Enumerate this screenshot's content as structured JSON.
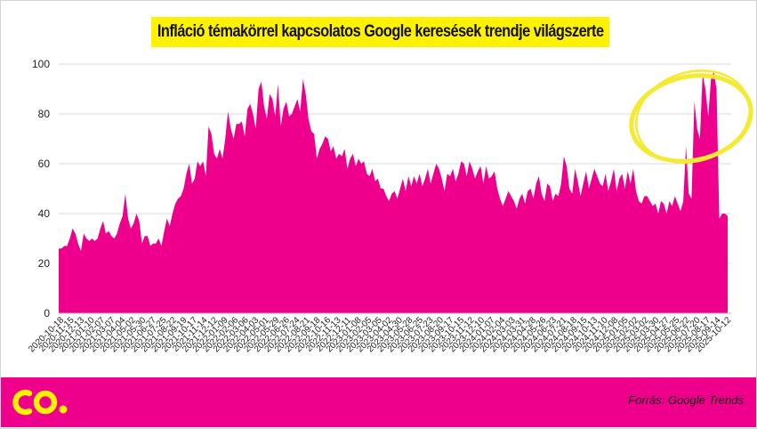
{
  "title": "Infláció témakörrel kapcsolatos Google keresések trendje világszerte",
  "source": "Forrás: Google Trends",
  "logo": "co.",
  "colors": {
    "area": "#ee008c",
    "title_bg": "#fff200",
    "highlight": "#f5ea33",
    "footer_bg": "#ee008c",
    "grid": "#d9d9d9"
  },
  "chart_data": {
    "type": "area",
    "title": "Infláció témakörrel kapcsolatos Google keresések trendje világszerte",
    "xlabel": "",
    "ylabel": "",
    "ylim": [
      0,
      100
    ],
    "yticks": [
      0,
      20,
      40,
      60,
      80,
      100
    ],
    "grid": true,
    "xtick_labels": [
      "2020-10-18",
      "2020-11-15",
      "2020-12-13",
      "2021-01-10",
      "2021-02-07",
      "2021-03-07",
      "2021-04-04",
      "2021-05-02",
      "2021-05-30",
      "2021-06-27",
      "2021-07-25",
      "2021-08-22",
      "2021-09-19",
      "2021-10-17",
      "2021-11-14",
      "2021-12-12",
      "2022-01-09",
      "2022-02-06",
      "2022-03-06",
      "2022-04-03",
      "2022-05-01",
      "2022-05-29",
      "2022-06-26",
      "2022-07-24",
      "2022-08-21",
      "2022-09-18",
      "2022-10-16",
      "2022-11-13",
      "2022-12-11",
      "2023-01-08",
      "2023-02-05",
      "2023-03-05",
      "2023-04-02",
      "2023-04-30",
      "2023-05-28",
      "2023-06-25",
      "2023-07-23",
      "2023-08-20",
      "2023-09-17",
      "2023-10-15",
      "2023-11-12",
      "2023-12-10",
      "2024-01-07",
      "2024-02-04",
      "2024-03-03",
      "2024-03-31",
      "2024-04-28",
      "2024-05-26",
      "2024-06-23",
      "2024-07-21",
      "2024-08-18",
      "2024-09-15",
      "2024-10-13",
      "2024-11-10",
      "2024-12-08",
      "2025-01-05",
      "2025-02-02",
      "2025-03-02",
      "2025-03-30",
      "2025-04-27",
      "2025-05-25",
      "2025-06-22",
      "2025-07-20",
      "2025-08-17",
      "2025-09-14",
      "2025-10-12"
    ],
    "series": [
      {
        "values": [
          26,
          26,
          27,
          27,
          30,
          34,
          32,
          28,
          25,
          32,
          30,
          29,
          30,
          29,
          30,
          34,
          37,
          32,
          33,
          31,
          30,
          32,
          36,
          39,
          48,
          38,
          34,
          36,
          40,
          37,
          28,
          31,
          31,
          27,
          28,
          28,
          30,
          27,
          33,
          38,
          35,
          40,
          44,
          46,
          47,
          50,
          56,
          60,
          52,
          54,
          61,
          59,
          61,
          55,
          75,
          72,
          64,
          62,
          66,
          62,
          70,
          81,
          74,
          70,
          76,
          76,
          77,
          71,
          82,
          84,
          80,
          74,
          90,
          93,
          83,
          78,
          88,
          86,
          79,
          92,
          75,
          82,
          85,
          79,
          80,
          83,
          86,
          81,
          94,
          88,
          78,
          73,
          72,
          62,
          66,
          68,
          71,
          70,
          65,
          67,
          62,
          64,
          63,
          66,
          58,
          62,
          64,
          59,
          62,
          60,
          61,
          56,
          55,
          58,
          53,
          54,
          50,
          50,
          47,
          45,
          48,
          49,
          46,
          50,
          54,
          49,
          55,
          51,
          55,
          52,
          56,
          51,
          54,
          58,
          52,
          56,
          60,
          58,
          54,
          49,
          56,
          55,
          58,
          53,
          56,
          61,
          60,
          55,
          61,
          58,
          54,
          57,
          59,
          52,
          59,
          54,
          55,
          57,
          50,
          46,
          43,
          46,
          49,
          47,
          45,
          42,
          46,
          48,
          44,
          49,
          50,
          46,
          52,
          55,
          48,
          45,
          52,
          51,
          45,
          48,
          47,
          52,
          63,
          59,
          50,
          48,
          58,
          53,
          47,
          52,
          57,
          50,
          54,
          58,
          55,
          52,
          51,
          56,
          49,
          53,
          58,
          49,
          54,
          56,
          50,
          57,
          52,
          58,
          49,
          45,
          44,
          47,
          47,
          45,
          43,
          44,
          40,
          45,
          44,
          40,
          45,
          43,
          47,
          44,
          41,
          45,
          67,
          48,
          46,
          85,
          74,
          70,
          96,
          90,
          79,
          94,
          97,
          90,
          38,
          40,
          40,
          39
        ]
      }
    ]
  }
}
